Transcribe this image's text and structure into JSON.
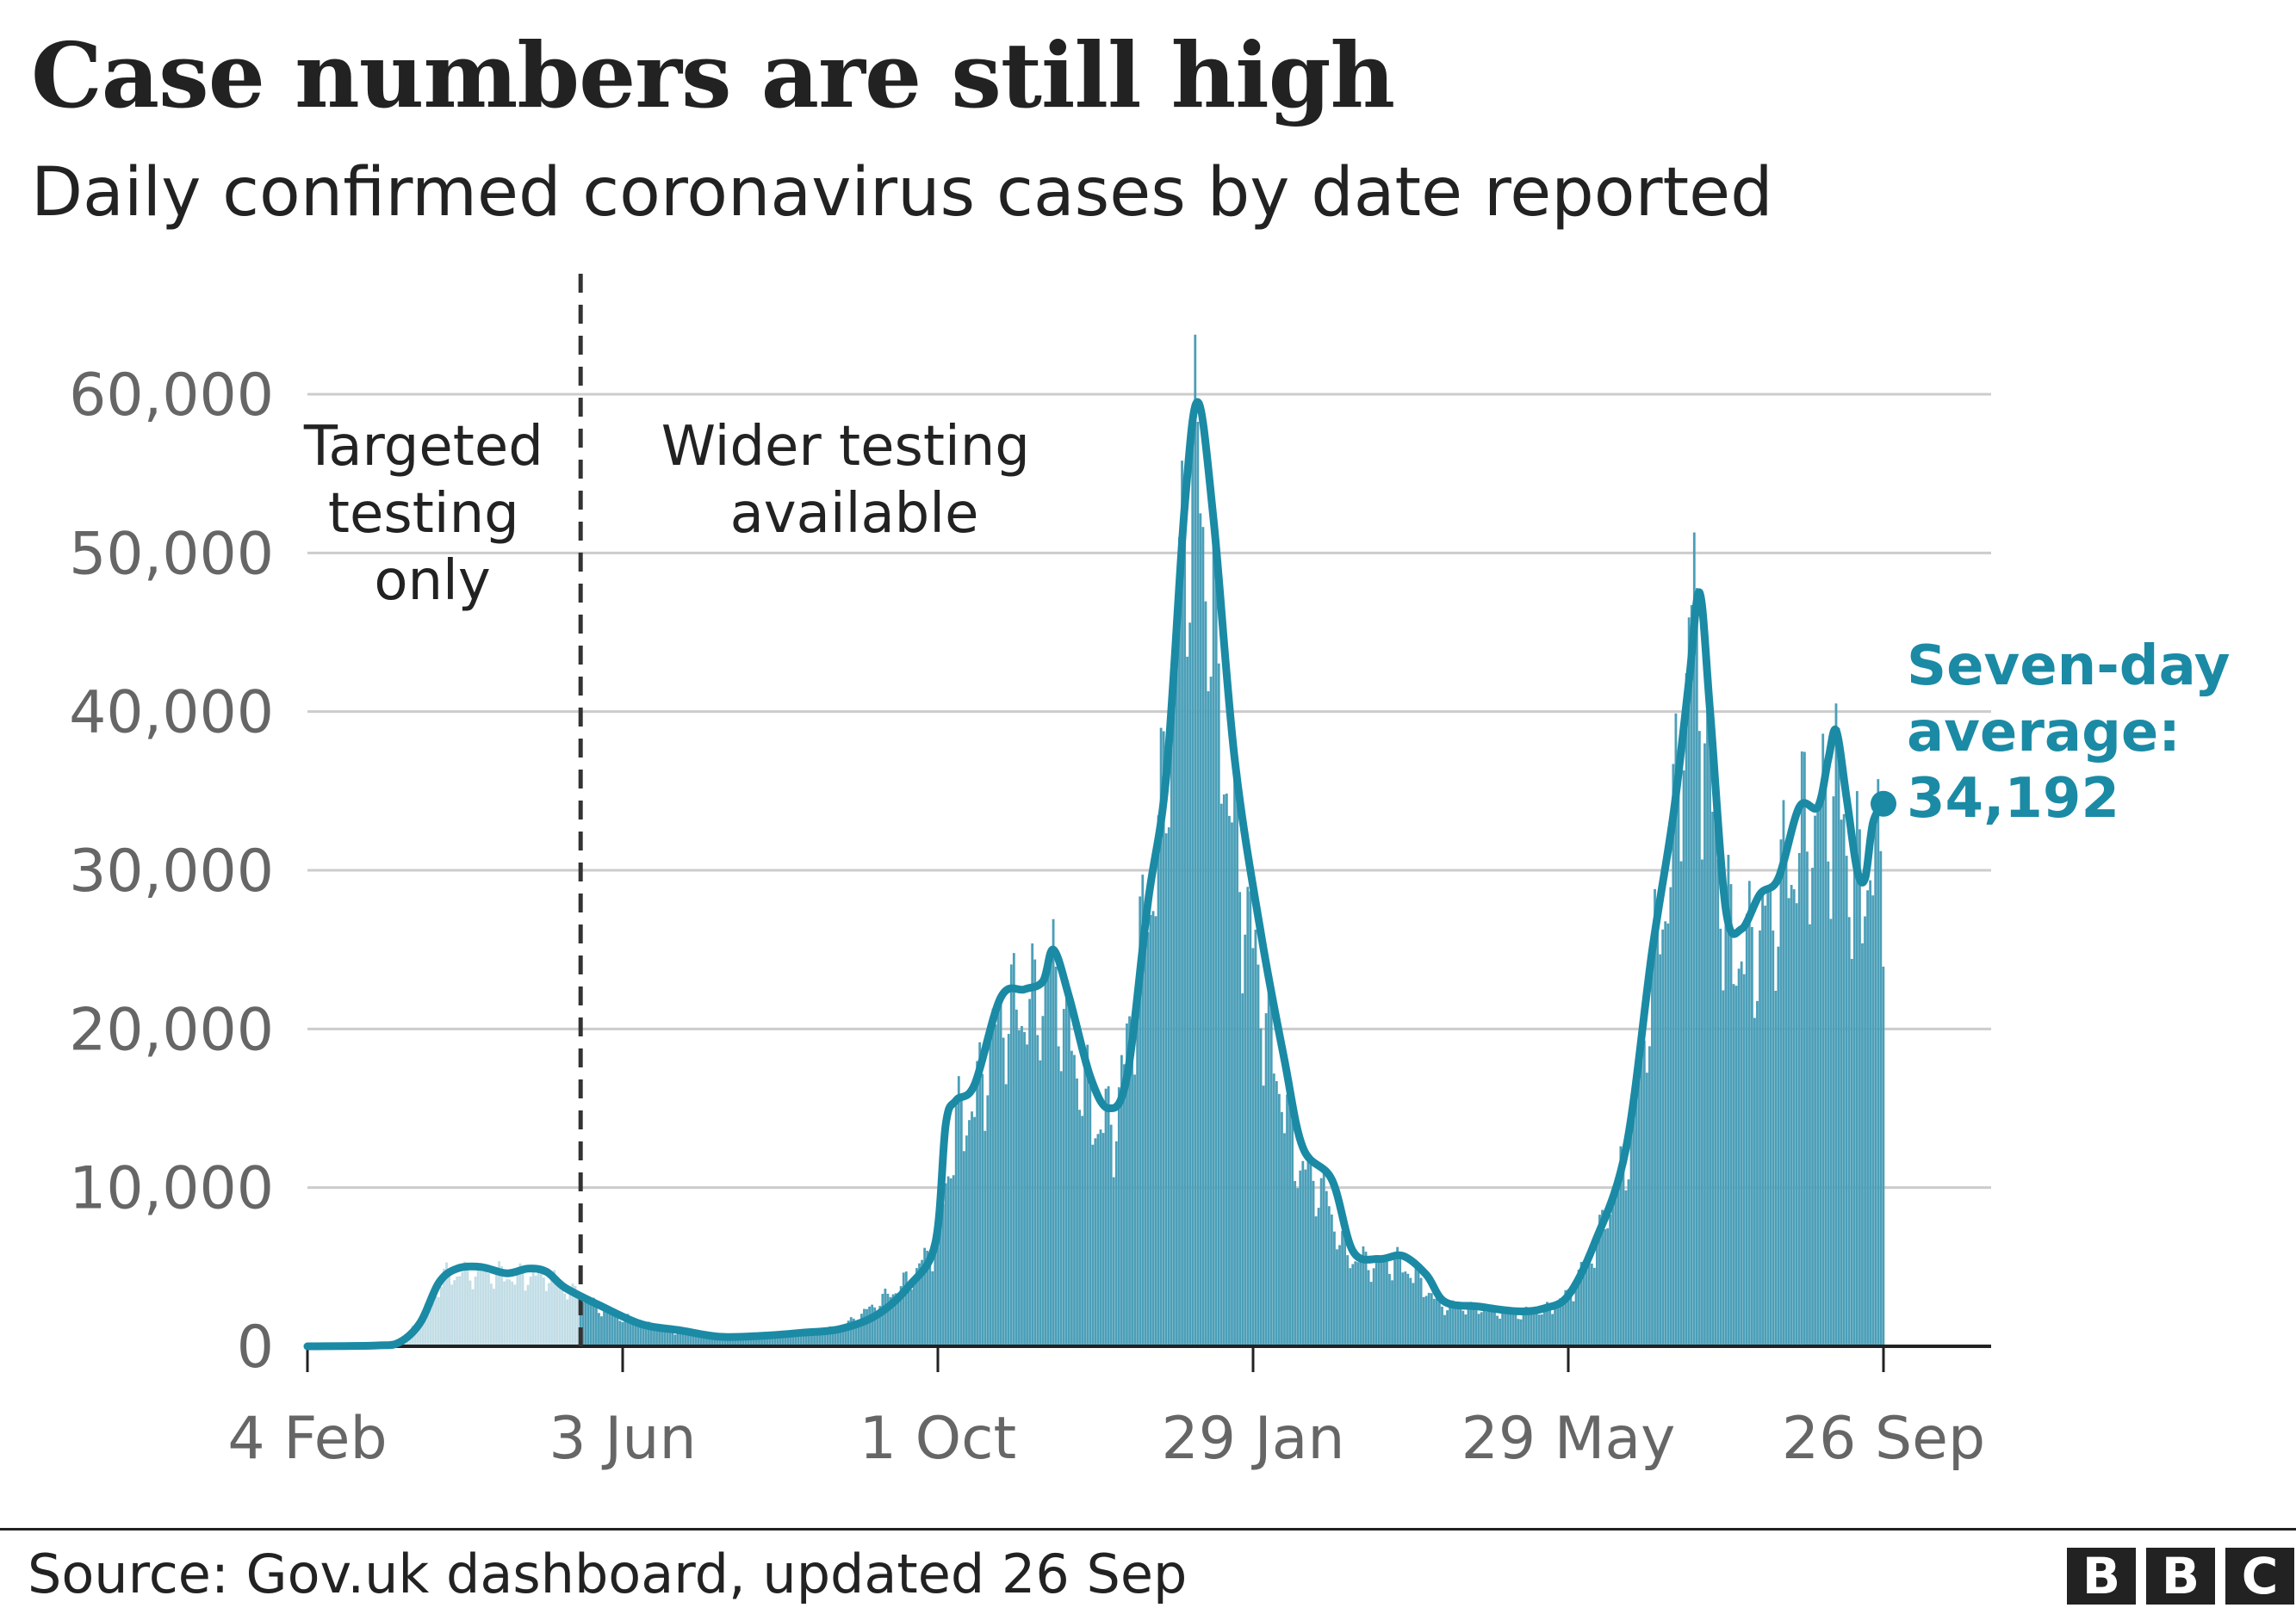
{
  "title": "Case numbers are still high",
  "subtitle": "Daily confirmed coronavirus cases by date reported",
  "source": "Source: Gov.uk dashboard, updated 26 Sep",
  "logo": {
    "letters": [
      "B",
      "B",
      "C"
    ]
  },
  "colors": {
    "accent": "#1b8aa5",
    "bars": "#4b9fb8",
    "bars_targeted": "#c2dde6",
    "grid": "#cccccc",
    "axis_text": "#666666",
    "text": "#222222"
  },
  "chart_data": {
    "type": "bar",
    "title": "Case numbers are still high",
    "subtitle": "Daily confirmed coronavirus cases by date reported",
    "xlabel": "",
    "ylabel": "",
    "ylim": [
      0,
      60000
    ],
    "yticks": [
      0,
      10000,
      20000,
      30000,
      40000,
      50000,
      60000
    ],
    "ytick_labels": [
      "0",
      "10,000",
      "20,000",
      "30,000",
      "40,000",
      "50,000",
      "60,000"
    ],
    "xticks": [
      "2020-02-04",
      "2020-06-03",
      "2020-10-01",
      "2021-01-29",
      "2021-05-29",
      "2021-09-26"
    ],
    "xtick_labels": [
      "4 Feb",
      "3 Jun",
      "1 Oct",
      "29 Jan",
      "29 May",
      "26 Sep"
    ],
    "grid": true,
    "series": [
      {
        "name": "Daily confirmed cases",
        "knots": [
          [
            "2020-02-04",
            0
          ],
          [
            "2020-03-01",
            100
          ],
          [
            "2020-03-12",
            500
          ],
          [
            "2020-03-20",
            2500
          ],
          [
            "2020-03-28",
            4800
          ],
          [
            "2020-04-10",
            5000
          ],
          [
            "2020-04-25",
            4700
          ],
          [
            "2020-05-05",
            4900
          ],
          [
            "2020-05-12",
            3900
          ],
          [
            "2020-05-25",
            2600
          ],
          [
            "2020-06-10",
            1500
          ],
          [
            "2020-06-25",
            1000
          ],
          [
            "2020-07-10",
            600
          ],
          [
            "2020-07-25",
            650
          ],
          [
            "2020-08-10",
            900
          ],
          [
            "2020-08-25",
            1200
          ],
          [
            "2020-09-08",
            2900
          ],
          [
            "2020-09-20",
            4500
          ],
          [
            "2020-09-30",
            6800
          ],
          [
            "2020-10-08",
            15000
          ],
          [
            "2020-10-15",
            16500
          ],
          [
            "2020-10-25",
            22500
          ],
          [
            "2020-11-08",
            23000
          ],
          [
            "2020-11-14",
            25500
          ],
          [
            "2020-11-22",
            19500
          ],
          [
            "2020-12-01",
            15000
          ],
          [
            "2020-12-08",
            15500
          ],
          [
            "2020-12-18",
            27500
          ],
          [
            "2020-12-25",
            35000
          ],
          [
            "2021-01-02",
            53000
          ],
          [
            "2021-01-06",
            61000
          ],
          [
            "2021-01-12",
            52000
          ],
          [
            "2021-01-20",
            37000
          ],
          [
            "2021-01-29",
            27000
          ],
          [
            "2021-02-08",
            18000
          ],
          [
            "2021-02-15",
            12500
          ],
          [
            "2021-02-25",
            10500
          ],
          [
            "2021-03-05",
            6200
          ],
          [
            "2021-03-15",
            5600
          ],
          [
            "2021-03-25",
            5700
          ],
          [
            "2021-04-01",
            4800
          ],
          [
            "2021-04-10",
            2800
          ],
          [
            "2021-04-25",
            2500
          ],
          [
            "2021-05-10",
            2200
          ],
          [
            "2021-05-20",
            2400
          ],
          [
            "2021-05-29",
            3500
          ],
          [
            "2021-06-08",
            6500
          ],
          [
            "2021-06-20",
            12500
          ],
          [
            "2021-06-30",
            25000
          ],
          [
            "2021-07-08",
            34000
          ],
          [
            "2021-07-15",
            50000
          ],
          [
            "2021-07-20",
            43000
          ],
          [
            "2021-07-28",
            28000
          ],
          [
            "2021-08-05",
            26500
          ],
          [
            "2021-08-15",
            29500
          ],
          [
            "2021-08-25",
            34000
          ],
          [
            "2021-09-02",
            36000
          ],
          [
            "2021-09-08",
            38500
          ],
          [
            "2021-09-15",
            31000
          ],
          [
            "2021-09-20",
            32500
          ],
          [
            "2021-09-26",
            33000
          ]
        ],
        "bar_style": [
          "targeted",
          "wider"
        ]
      },
      {
        "name": "Seven-day average",
        "knots": [
          [
            "2020-02-04",
            0
          ],
          [
            "2020-03-01",
            50
          ],
          [
            "2020-03-10",
            250
          ],
          [
            "2020-03-18",
            1500
          ],
          [
            "2020-03-25",
            4000
          ],
          [
            "2020-04-01",
            4900
          ],
          [
            "2020-04-10",
            5000
          ],
          [
            "2020-04-20",
            4600
          ],
          [
            "2020-04-28",
            4900
          ],
          [
            "2020-05-05",
            4700
          ],
          [
            "2020-05-12",
            3700
          ],
          [
            "2020-05-25",
            2600
          ],
          [
            "2020-06-10",
            1400
          ],
          [
            "2020-06-25",
            1000
          ],
          [
            "2020-07-10",
            600
          ],
          [
            "2020-07-25",
            650
          ],
          [
            "2020-08-10",
            850
          ],
          [
            "2020-08-25",
            1100
          ],
          [
            "2020-09-08",
            2000
          ],
          [
            "2020-09-20",
            3800
          ],
          [
            "2020-09-30",
            6500
          ],
          [
            "2020-10-04",
            14000
          ],
          [
            "2020-10-08",
            15500
          ],
          [
            "2020-10-15",
            16500
          ],
          [
            "2020-10-25",
            22000
          ],
          [
            "2020-11-03",
            22500
          ],
          [
            "2020-11-10",
            23000
          ],
          [
            "2020-11-14",
            25000
          ],
          [
            "2020-11-20",
            22000
          ],
          [
            "2020-11-28",
            17000
          ],
          [
            "2020-12-05",
            15000
          ],
          [
            "2020-12-12",
            17000
          ],
          [
            "2020-12-20",
            28000
          ],
          [
            "2020-12-27",
            36000
          ],
          [
            "2021-01-03",
            53000
          ],
          [
            "2021-01-08",
            59500
          ],
          [
            "2021-01-14",
            52000
          ],
          [
            "2021-01-22",
            37000
          ],
          [
            "2021-02-01",
            26000
          ],
          [
            "2021-02-10",
            18000
          ],
          [
            "2021-02-17",
            12500
          ],
          [
            "2021-02-28",
            10500
          ],
          [
            "2021-03-08",
            6000
          ],
          [
            "2021-03-18",
            5500
          ],
          [
            "2021-03-27",
            5700
          ],
          [
            "2021-04-05",
            4500
          ],
          [
            "2021-04-12",
            2800
          ],
          [
            "2021-04-25",
            2500
          ],
          [
            "2021-05-10",
            2200
          ],
          [
            "2021-05-20",
            2400
          ],
          [
            "2021-05-29",
            3200
          ],
          [
            "2021-06-08",
            6500
          ],
          [
            "2021-06-20",
            12500
          ],
          [
            "2021-06-30",
            25000
          ],
          [
            "2021-07-08",
            33500
          ],
          [
            "2021-07-14",
            42000
          ],
          [
            "2021-07-18",
            47500
          ],
          [
            "2021-07-22",
            40000
          ],
          [
            "2021-07-28",
            27500
          ],
          [
            "2021-08-03",
            26300
          ],
          [
            "2021-08-10",
            28500
          ],
          [
            "2021-08-17",
            29500
          ],
          [
            "2021-08-25",
            34000
          ],
          [
            "2021-09-01",
            34000
          ],
          [
            "2021-09-05",
            37000
          ],
          [
            "2021-09-08",
            38800
          ],
          [
            "2021-09-12",
            34500
          ],
          [
            "2021-09-16",
            30000
          ],
          [
            "2021-09-19",
            29500
          ],
          [
            "2021-09-22",
            33000
          ],
          [
            "2021-09-26",
            34192
          ]
        ]
      }
    ],
    "annotations": [
      {
        "text": [
          "Targeted",
          "testing",
          "only"
        ],
        "position": "before testing cutoff"
      },
      {
        "text": [
          "Wider testing",
          "available"
        ],
        "position": "after testing cutoff"
      },
      {
        "text": [
          "Seven-day",
          "average:",
          "34,192"
        ],
        "position": "end of seven-day average line",
        "color": "#1b8aa5"
      }
    ],
    "testing_cutoff_date": "2020-05-18",
    "last_value": 34192,
    "last_date": "2021-09-26"
  }
}
